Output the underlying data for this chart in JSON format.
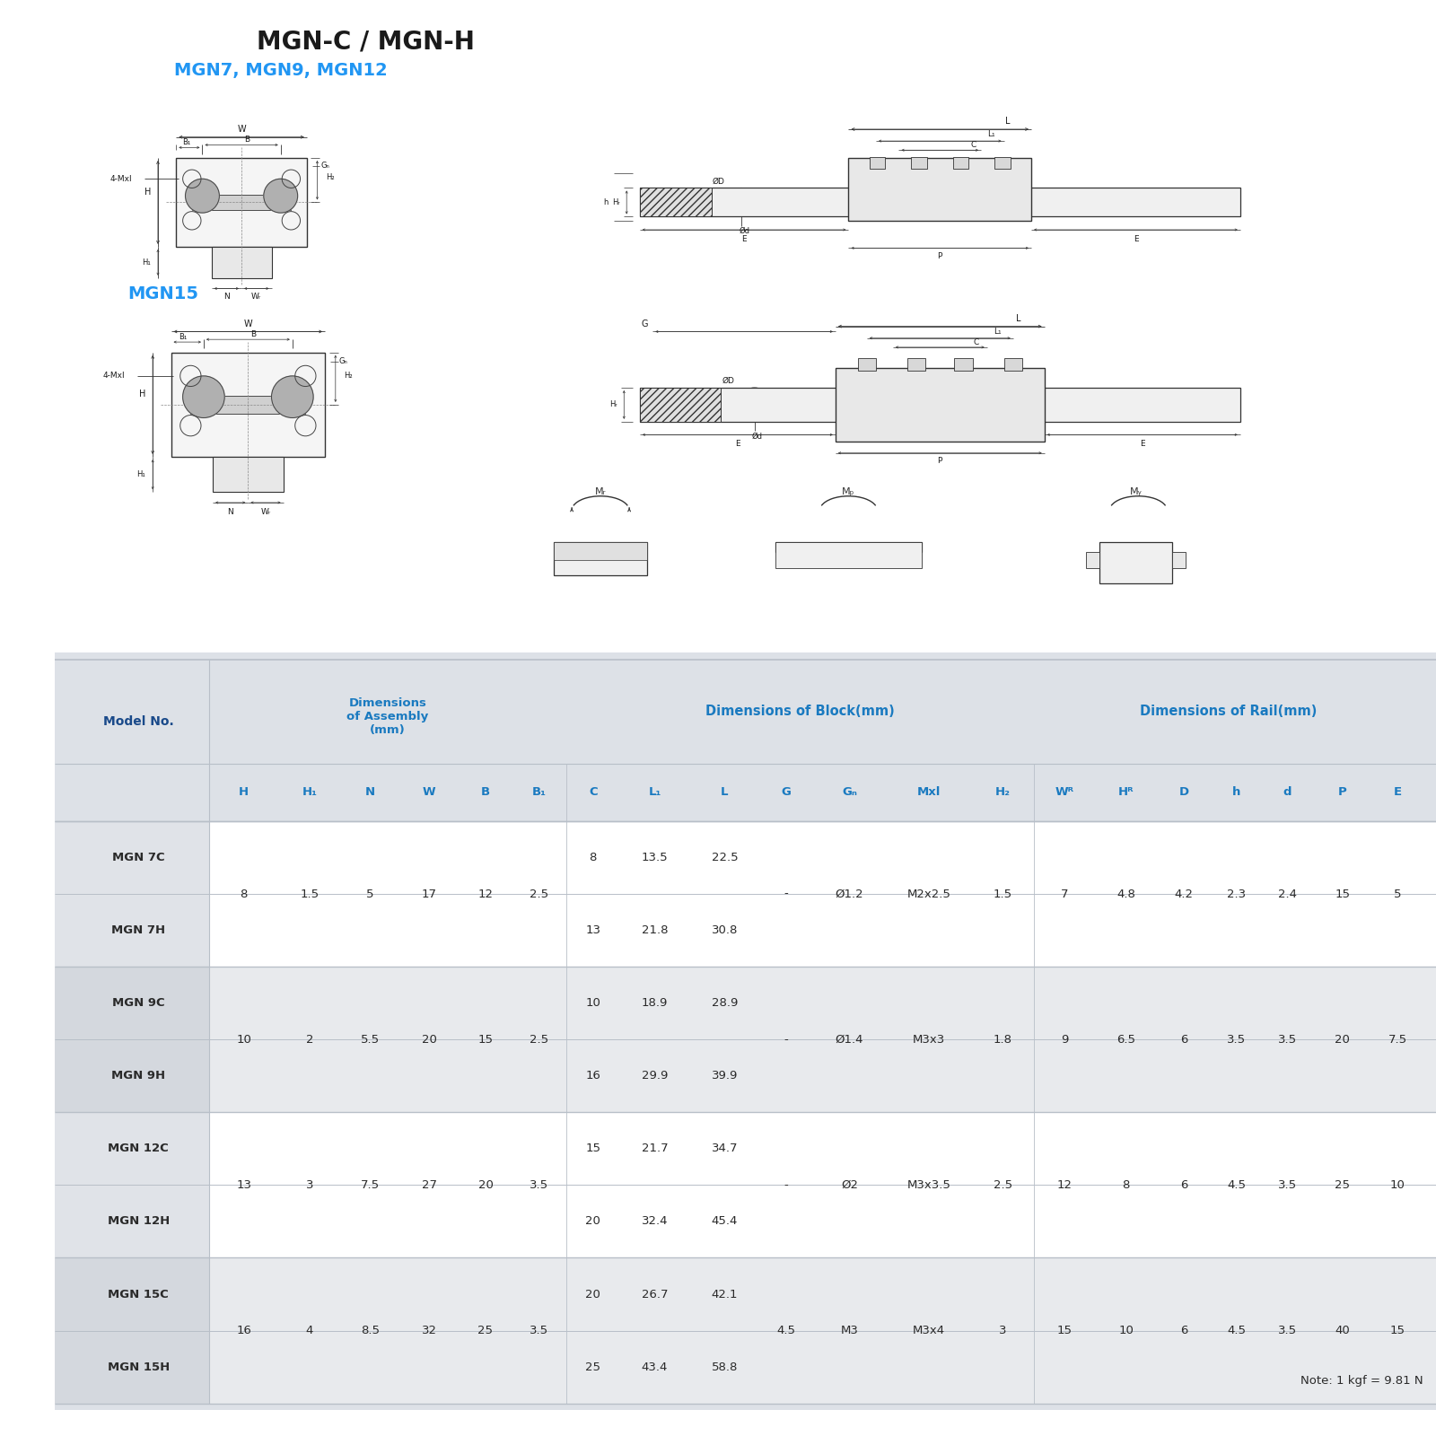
{
  "title": "MGN-C / MGN-H",
  "subtitle": "MGN7, MGN9, MGN12",
  "subtitle2": "MGN15",
  "title_color": "#1a1a1a",
  "subtitle_color": "#2196F3",
  "bg_color": "#ffffff",
  "table_bg": "#dde1e7",
  "col_headers": [
    "H",
    "H₁",
    "N",
    "W",
    "B",
    "B₁",
    "C",
    "L₁",
    "L",
    "G",
    "Gₙ",
    "Mxl",
    "H₂",
    "Wᴿ",
    "Hᴿ",
    "D",
    "h",
    "d",
    "P",
    "E"
  ],
  "note": "Note: 1 kgf = 9.81 N",
  "shared_vals": [
    [
      "8",
      "1.5",
      "5",
      "17",
      "12",
      "2.5"
    ],
    [
      "10",
      "2",
      "5.5",
      "20",
      "15",
      "2.5"
    ],
    [
      "13",
      "3",
      "7.5",
      "27",
      "20",
      "3.5"
    ],
    [
      "16",
      "4",
      "8.5",
      "32",
      "25",
      "3.5"
    ]
  ],
  "g_vals": [
    "-",
    "-",
    "-",
    "4.5"
  ],
  "gn_vals": [
    "Ø1.2",
    "Ø1.4",
    "Ø2",
    "M3"
  ],
  "mxl_vals": [
    "M2x2.5",
    "M3x3",
    "M3x3.5",
    "M3x4"
  ],
  "h2_vals": [
    "1.5",
    "1.8",
    "2.5",
    "3"
  ],
  "wr_vals": [
    "7",
    "9",
    "12",
    "15"
  ],
  "hr_vals": [
    "4.8",
    "6.5",
    "8",
    "10"
  ],
  "d_vals": [
    "4.2",
    "6",
    "6",
    "6"
  ],
  "h_vals": [
    "2.3",
    "3.5",
    "4.5",
    "4.5"
  ],
  "d2_vals": [
    "2.4",
    "3.5",
    "3.5",
    "3.5"
  ],
  "p_vals": [
    "15",
    "20",
    "25",
    "40"
  ],
  "e_vals": [
    "5",
    "7.5",
    "10",
    "15"
  ],
  "c_vals": [
    [
      "8",
      "13"
    ],
    [
      "10",
      "16"
    ],
    [
      "15",
      "20"
    ],
    [
      "20",
      "25"
    ]
  ],
  "l1_vals": [
    [
      "13.5",
      "21.8"
    ],
    [
      "18.9",
      "29.9"
    ],
    [
      "21.7",
      "32.4"
    ],
    [
      "26.7",
      "43.4"
    ]
  ],
  "l_vals": [
    [
      "22.5",
      "30.8"
    ],
    [
      "28.9",
      "39.9"
    ],
    [
      "34.7",
      "45.4"
    ],
    [
      "42.1",
      "58.8"
    ]
  ],
  "pair_names": [
    [
      "MGN 7C",
      "MGN 7H"
    ],
    [
      "MGN 9C",
      "MGN 9H"
    ],
    [
      "MGN 12C",
      "MGN 12H"
    ],
    [
      "MGN 15C",
      "MGN 15H"
    ]
  ]
}
